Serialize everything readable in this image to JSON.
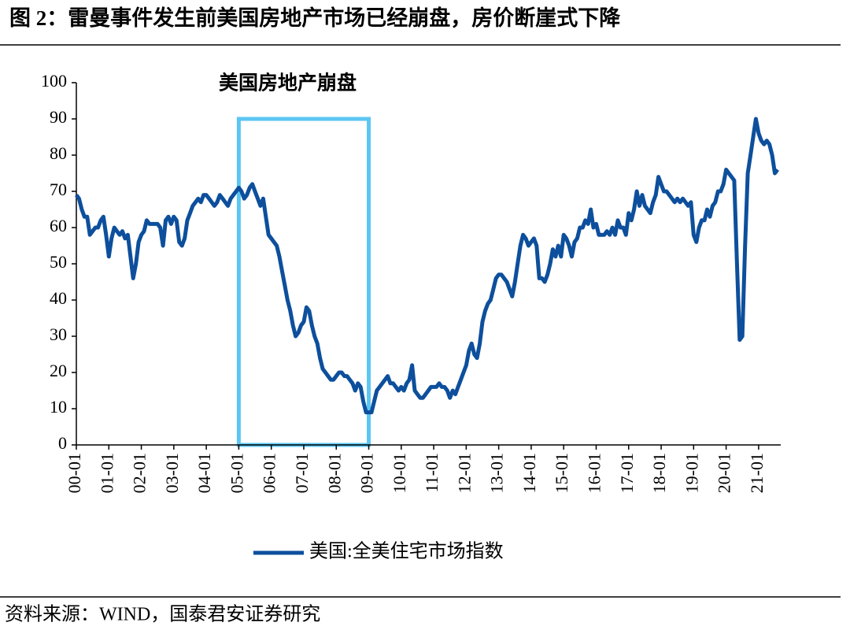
{
  "chart_data": {
    "type": "line",
    "title": "图 2：雷曼事件发生前美国房地产市场已经崩盘，房价断崖式下降",
    "source": "资料来源：WIND，国泰君安证券研究",
    "annotation": "美国房地产崩盘",
    "highlight": {
      "from": "05-01",
      "to": "09-01",
      "top": 90,
      "color": "#5cc6f2"
    },
    "categories": [
      "00-01",
      null,
      null,
      null,
      null,
      null,
      null,
      null,
      null,
      null,
      null,
      null,
      "01-01",
      null,
      null,
      null,
      null,
      null,
      null,
      null,
      null,
      null,
      null,
      null,
      "02-01",
      null,
      null,
      null,
      null,
      null,
      null,
      null,
      null,
      null,
      null,
      null,
      "03-01",
      null,
      null,
      null,
      null,
      null,
      null,
      null,
      null,
      null,
      null,
      null,
      "04-01",
      null,
      null,
      null,
      null,
      null,
      null,
      null,
      null,
      null,
      null,
      null,
      "05-01",
      null,
      null,
      null,
      null,
      null,
      null,
      null,
      null,
      null,
      null,
      null,
      "06-01",
      null,
      null,
      null,
      null,
      null,
      null,
      null,
      null,
      null,
      null,
      null,
      "07-01",
      null,
      null,
      null,
      null,
      null,
      null,
      null,
      null,
      null,
      null,
      null,
      "08-01",
      null,
      null,
      null,
      null,
      null,
      null,
      null,
      null,
      null,
      null,
      null,
      "09-01",
      null,
      null,
      null,
      null,
      null,
      null,
      null,
      null,
      null,
      null,
      null,
      "10-01",
      null,
      null,
      null,
      null,
      null,
      null,
      null,
      null,
      null,
      null,
      null,
      "11-01",
      null,
      null,
      null,
      null,
      null,
      null,
      null,
      null,
      null,
      null,
      null,
      "12-01",
      null,
      null,
      null,
      null,
      null,
      null,
      null,
      null,
      null,
      null,
      null,
      "13-01",
      null,
      null,
      null,
      null,
      null,
      null,
      null,
      null,
      null,
      null,
      null,
      "14-01",
      null,
      null,
      null,
      null,
      null,
      null,
      null,
      null,
      null,
      null,
      null,
      "15-01",
      null,
      null,
      null,
      null,
      null,
      null,
      null,
      null,
      null,
      null,
      null,
      "16-01",
      null,
      null,
      null,
      null,
      null,
      null,
      null,
      null,
      null,
      null,
      null,
      "17-01",
      null,
      null,
      null,
      null,
      null,
      null,
      null,
      null,
      null,
      null,
      null,
      "18-01",
      null,
      null,
      null,
      null,
      null,
      null,
      null,
      null,
      null,
      null,
      null,
      "19-01",
      null,
      null,
      null,
      null,
      null,
      null,
      null,
      null,
      null,
      null,
      null,
      "20-01",
      null,
      null,
      null,
      null,
      null,
      null,
      null,
      null,
      null,
      null,
      null,
      "21-01",
      null,
      null,
      null,
      null,
      null,
      null,
      null
    ],
    "series": [
      {
        "name": "美国:全美住宅市场指数",
        "color": "#0d4f9c",
        "values": [
          69,
          68,
          65,
          63,
          63,
          58,
          59,
          60,
          60,
          62,
          63,
          58,
          52,
          57,
          60,
          59,
          58,
          59,
          57,
          58,
          52,
          46,
          50,
          56,
          58,
          59,
          62,
          61,
          61,
          61,
          61,
          60,
          55,
          62,
          63,
          61,
          63,
          62,
          56,
          55,
          57,
          62,
          64,
          66,
          67,
          68,
          67,
          69,
          69,
          68,
          67,
          66,
          67,
          69,
          68,
          67,
          66,
          68,
          69,
          70,
          71,
          70,
          68,
          69,
          71,
          72,
          70,
          68,
          66,
          68,
          63,
          58,
          57,
          56,
          55,
          52,
          48,
          44,
          40,
          37,
          33,
          30,
          31,
          33,
          34,
          38,
          37,
          33,
          30,
          28,
          24,
          21,
          20,
          19,
          18,
          18,
          19,
          20,
          20,
          19,
          19,
          18,
          17,
          15,
          17,
          16,
          12,
          9,
          9,
          9,
          12,
          15,
          16,
          17,
          18,
          19,
          17,
          17,
          16,
          15,
          16,
          15,
          17,
          18,
          22,
          15,
          14,
          13,
          13,
          14,
          15,
          16,
          16,
          16,
          17,
          16,
          16,
          15,
          13,
          15,
          14,
          16,
          18,
          20,
          22,
          26,
          28,
          25,
          24,
          28,
          34,
          37,
          39,
          40,
          43,
          46,
          47,
          47,
          46,
          45,
          43,
          41,
          45,
          50,
          55,
          58,
          57,
          55,
          56,
          57,
          55,
          46,
          46,
          45,
          47,
          50,
          54,
          52,
          55,
          52,
          58,
          57,
          55,
          52,
          56,
          57,
          60,
          60,
          62,
          61,
          65,
          60,
          61,
          58,
          58,
          58,
          59,
          58,
          60,
          58,
          62,
          60,
          60,
          58,
          64,
          62,
          65,
          70,
          66,
          69,
          66,
          65,
          64,
          67,
          69,
          74,
          72,
          70,
          70,
          69,
          68,
          67,
          68,
          67,
          68,
          67,
          66,
          67,
          58,
          56,
          60,
          62,
          62,
          65,
          63,
          66,
          67,
          70,
          70,
          72,
          76,
          75,
          74,
          73,
          50,
          29,
          30,
          55,
          75,
          80,
          85,
          90,
          86,
          84,
          83,
          84,
          83,
          80,
          75,
          76
        ]
      }
    ],
    "ylim": [
      0,
      100
    ],
    "yticks": [
      0,
      10,
      20,
      30,
      40,
      50,
      60,
      70,
      80,
      90,
      100
    ],
    "grid": false,
    "legend": "bottom"
  }
}
